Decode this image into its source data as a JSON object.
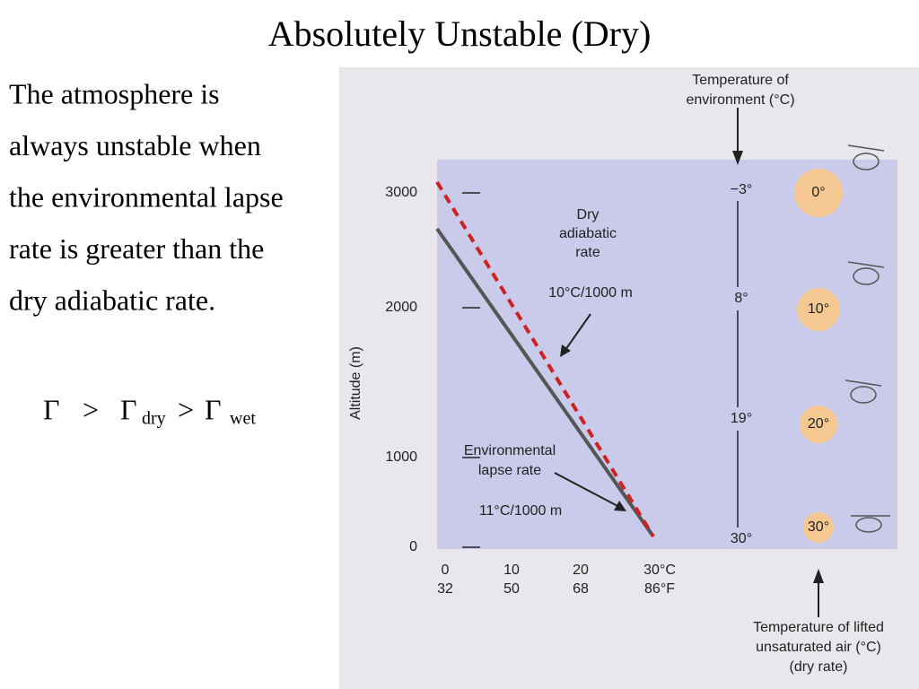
{
  "title": "Absolutely Unstable (Dry)",
  "body_lines": [
    "The atmosphere is",
    "always unstable when",
    "the environmental lapse",
    "rate is greater than the",
    "dry adiabatic rate."
  ],
  "formula": [
    "Γ",
    ">",
    "Γ",
    "dry",
    ">",
    "Γ",
    "wet"
  ],
  "figure": {
    "env_label": [
      "Temperature of",
      "environment (°C)"
    ],
    "dry_label": [
      "Dry",
      "adiabatic",
      "rate"
    ],
    "dry_rate": "10°C/1000 m",
    "env_lapse_label": [
      "Environmental",
      "lapse rate"
    ],
    "env_rate": "11°C/1000 m",
    "y_axis_title": "Altitude (m)",
    "altitudes": [
      "3000",
      "2000",
      "1000",
      "0"
    ],
    "x_labels_c": [
      "0",
      "10",
      "20",
      "30°C"
    ],
    "x_labels_f": [
      "32",
      "50",
      "68",
      "86°F"
    ],
    "env_temps": [
      "−3°",
      "8°",
      "19°",
      "30°"
    ],
    "parcel_temps": [
      "0°",
      "10°",
      "20°",
      "30°"
    ],
    "parcel_label": [
      "Temperature of lifted",
      "unsaturated air (°C)",
      "(dry rate)"
    ]
  }
}
